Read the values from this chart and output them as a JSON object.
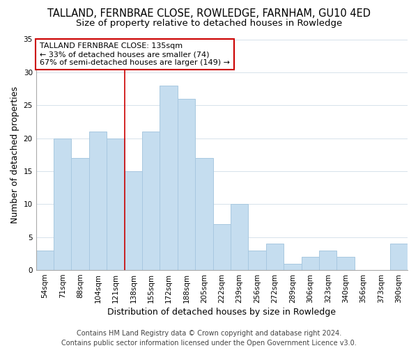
{
  "title": "TALLAND, FERNBRAE CLOSE, ROWLEDGE, FARNHAM, GU10 4ED",
  "subtitle": "Size of property relative to detached houses in Rowledge",
  "xlabel": "Distribution of detached houses by size in Rowledge",
  "ylabel": "Number of detached properties",
  "bar_labels": [
    "54sqm",
    "71sqm",
    "88sqm",
    "104sqm",
    "121sqm",
    "138sqm",
    "155sqm",
    "172sqm",
    "188sqm",
    "205sqm",
    "222sqm",
    "239sqm",
    "256sqm",
    "272sqm",
    "289sqm",
    "306sqm",
    "323sqm",
    "340sqm",
    "356sqm",
    "373sqm",
    "390sqm"
  ],
  "bar_values": [
    3,
    20,
    17,
    21,
    20,
    15,
    21,
    28,
    26,
    17,
    7,
    10,
    3,
    4,
    1,
    2,
    3,
    2,
    0,
    0,
    4
  ],
  "bar_color": "#c5ddef",
  "bar_edge_color": "#a8c8e0",
  "vline_x": 4.5,
  "vline_color": "#cc0000",
  "ylim": [
    0,
    35
  ],
  "yticks": [
    0,
    5,
    10,
    15,
    20,
    25,
    30,
    35
  ],
  "annotation_line1": "TALLAND FERNBRAE CLOSE: 135sqm",
  "annotation_line2": "← 33% of detached houses are smaller (74)",
  "annotation_line3": "67% of semi-detached houses are larger (149) →",
  "annotation_box_color": "#ffffff",
  "annotation_box_edgecolor": "#cc0000",
  "footer_line1": "Contains HM Land Registry data © Crown copyright and database right 2024.",
  "footer_line2": "Contains public sector information licensed under the Open Government Licence v3.0.",
  "background_color": "#ffffff",
  "title_fontsize": 10.5,
  "subtitle_fontsize": 9.5,
  "axis_label_fontsize": 9,
  "tick_fontsize": 7.5,
  "annotation_fontsize": 8,
  "footer_fontsize": 7
}
